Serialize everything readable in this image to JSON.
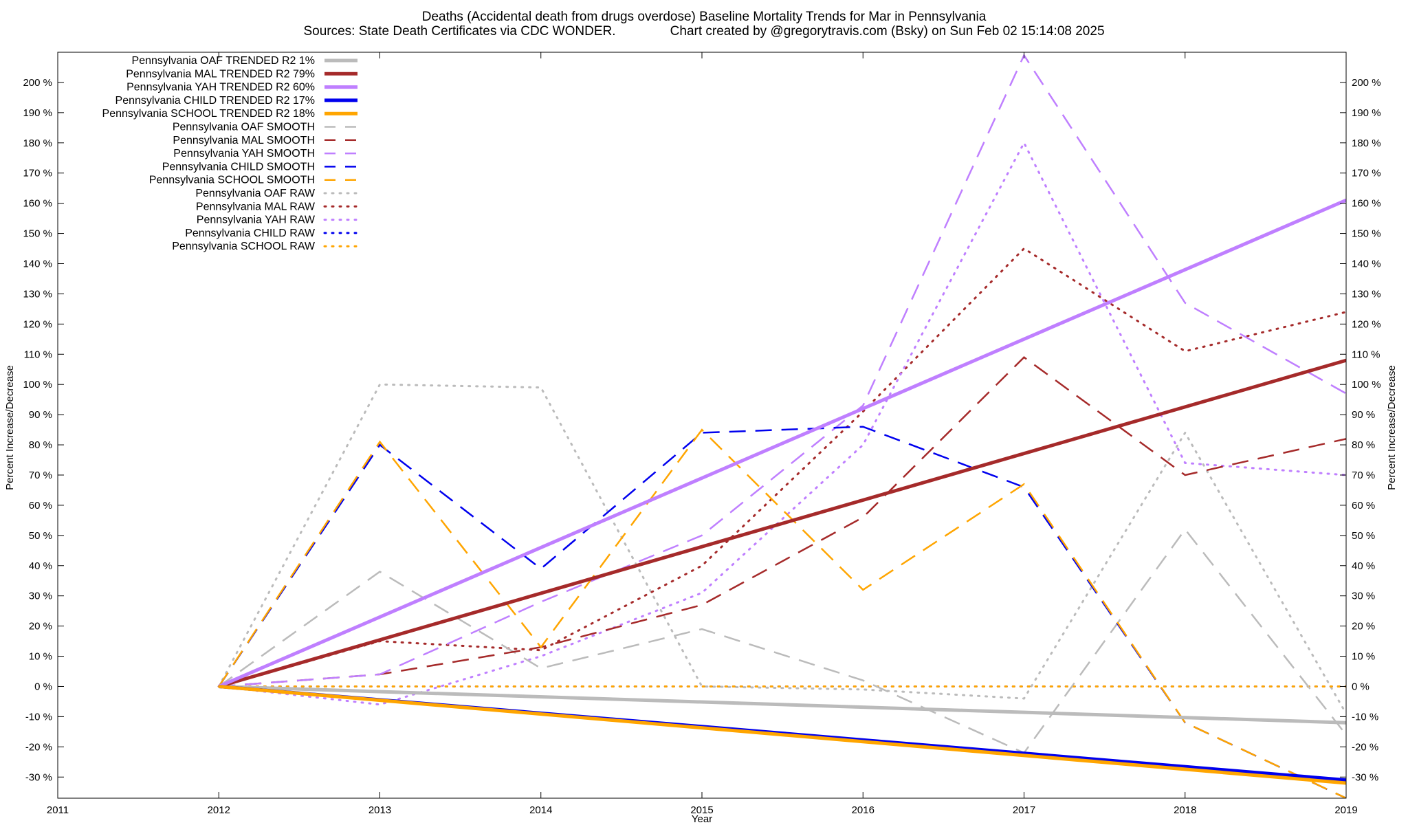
{
  "chart_data": {
    "type": "line",
    "title": "Deaths (Accidental death from drugs overdose)  Baseline Mortality Trends for Mar in Pennsylvania",
    "subtitle": "Sources: State Death Certificates via CDC WONDER.               Chart created by @gregorytravis.com (Bsky) on Sun Feb 02 15:14:08 2025",
    "xlabel": "Year",
    "ylabel": "Percent Increase/Decrease",
    "y2label": "Percent Increase/Decrease",
    "xlim": [
      2011,
      2019
    ],
    "ylim": [
      -37,
      210
    ],
    "x_ticks": [
      "2011",
      "2012",
      "2013",
      "2014",
      "2015",
      "2016",
      "2017",
      "2018",
      "2019"
    ],
    "y_ticks": [
      -30,
      -20,
      -10,
      0,
      10,
      20,
      30,
      40,
      50,
      60,
      70,
      80,
      90,
      100,
      110,
      120,
      130,
      140,
      150,
      160,
      170,
      180,
      190,
      200
    ],
    "y_tick_suffix": " %",
    "grid": false,
    "legend_position": "top-left",
    "series": [
      {
        "name": "Pennsylvania OAF TRENDED R2  1%",
        "style": "solid",
        "color": "#bbbbbb",
        "x": [
          2012,
          2019
        ],
        "y": [
          0,
          -12
        ]
      },
      {
        "name": "Pennsylvania MAL TRENDED R2  79%",
        "style": "solid",
        "color": "#a52a2a",
        "x": [
          2012,
          2019
        ],
        "y": [
          0,
          108
        ]
      },
      {
        "name": "Pennsylvania YAH TRENDED R2  60%",
        "style": "solid",
        "color": "#bf7fff",
        "x": [
          2012,
          2019
        ],
        "y": [
          0,
          161
        ]
      },
      {
        "name": "Pennsylvania CHILD TRENDED R2  17%",
        "style": "solid",
        "color": "#0000ee",
        "x": [
          2012,
          2019
        ],
        "y": [
          0,
          -31
        ]
      },
      {
        "name": "Pennsylvania SCHOOL TRENDED R2  18%",
        "style": "solid",
        "color": "#ffa500",
        "x": [
          2012,
          2019
        ],
        "y": [
          0,
          -32
        ]
      },
      {
        "name": "Pennsylvania OAF SMOOTH",
        "style": "dashed",
        "color": "#bbbbbb",
        "x": [
          2012,
          2013,
          2014,
          2015,
          2016,
          2017,
          2018,
          2019
        ],
        "y": [
          0,
          38,
          6,
          19,
          2,
          -22,
          52,
          -16
        ]
      },
      {
        "name": "Pennsylvania MAL SMOOTH",
        "style": "dashed",
        "color": "#a52a2a",
        "x": [
          2012,
          2013,
          2014,
          2015,
          2016,
          2017,
          2018,
          2019
        ],
        "y": [
          0,
          4,
          13,
          27,
          56,
          109,
          70,
          82
        ]
      },
      {
        "name": "Pennsylvania YAH SMOOTH",
        "style": "dashed",
        "color": "#bf7fff",
        "x": [
          2012,
          2013,
          2014,
          2015,
          2016,
          2017,
          2018,
          2019
        ],
        "y": [
          0,
          4,
          28,
          50,
          93,
          209,
          127,
          97
        ]
      },
      {
        "name": "Pennsylvania CHILD SMOOTH",
        "style": "dashed",
        "color": "#0000ee",
        "x": [
          2012,
          2013,
          2014,
          2015,
          2016,
          2017,
          2018,
          2019
        ],
        "y": [
          0,
          80,
          39,
          84,
          86,
          66,
          -12,
          -37
        ]
      },
      {
        "name": "Pennsylvania SCHOOL SMOOTH",
        "style": "dashed",
        "color": "#ffa500",
        "x": [
          2012,
          2013,
          2014,
          2015,
          2016,
          2017,
          2018,
          2019
        ],
        "y": [
          0,
          81,
          13,
          85,
          32,
          67,
          -12,
          -37
        ]
      },
      {
        "name": "Pennsylvania OAF RAW",
        "style": "dotted",
        "color": "#bbbbbb",
        "x": [
          2012,
          2013,
          2014,
          2015,
          2016,
          2017,
          2018,
          2019
        ],
        "y": [
          0,
          100,
          99,
          0,
          -1,
          -4,
          84,
          -9
        ]
      },
      {
        "name": "Pennsylvania MAL RAW",
        "style": "dotted",
        "color": "#a52a2a",
        "x": [
          2012,
          2013,
          2014,
          2015,
          2016,
          2017,
          2018,
          2019
        ],
        "y": [
          0,
          15,
          12,
          40,
          91,
          145,
          111,
          124
        ]
      },
      {
        "name": "Pennsylvania YAH RAW",
        "style": "dotted",
        "color": "#bf7fff",
        "x": [
          2012,
          2013,
          2014,
          2015,
          2016,
          2017,
          2018,
          2019
        ],
        "y": [
          0,
          -6,
          10,
          31,
          80,
          180,
          74,
          70
        ]
      },
      {
        "name": "Pennsylvania CHILD RAW",
        "style": "dotted",
        "color": "#0000ee",
        "x": [
          2012,
          2013,
          2014,
          2015,
          2016,
          2017,
          2018,
          2019
        ],
        "y": [
          0,
          0,
          0,
          0,
          0,
          0,
          0,
          0
        ]
      },
      {
        "name": "Pennsylvania SCHOOL RAW",
        "style": "dotted",
        "color": "#ffa500",
        "x": [
          2012,
          2013,
          2014,
          2015,
          2016,
          2017,
          2018,
          2019
        ],
        "y": [
          0,
          0,
          0,
          0,
          0,
          0,
          0,
          0
        ]
      }
    ]
  }
}
